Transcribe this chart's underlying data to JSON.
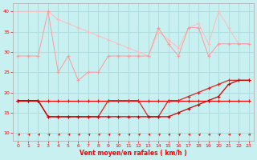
{
  "x": [
    0,
    1,
    2,
    3,
    4,
    5,
    6,
    7,
    8,
    9,
    10,
    11,
    12,
    13,
    14,
    15,
    16,
    17,
    18,
    19,
    20,
    21,
    22,
    23
  ],
  "line_top_rafales": [
    40,
    40,
    40,
    40,
    38,
    37,
    36,
    35,
    34,
    33,
    32,
    31,
    30,
    29,
    35,
    33,
    31,
    36,
    37,
    32,
    40,
    36,
    32,
    32
  ],
  "line_mid_pink": [
    29,
    29,
    29,
    40,
    25,
    29,
    23,
    25,
    25,
    29,
    29,
    29,
    29,
    29,
    36,
    32,
    29,
    36,
    36,
    29,
    32,
    32,
    32,
    32
  ],
  "line_flat_red": [
    18,
    18,
    18,
    18,
    18,
    18,
    18,
    18,
    18,
    18,
    18,
    18,
    18,
    18,
    18,
    18,
    18,
    18,
    18,
    18,
    18,
    18,
    18,
    18
  ],
  "line_diag_red": [
    18,
    18,
    18,
    14,
    14,
    14,
    14,
    14,
    14,
    18,
    18,
    18,
    18,
    14,
    14,
    18,
    18,
    19,
    20,
    21,
    22,
    23,
    23,
    23
  ],
  "line_low_red": [
    18,
    18,
    18,
    14,
    14,
    14,
    14,
    14,
    14,
    14,
    14,
    14,
    14,
    14,
    14,
    14,
    15,
    16,
    17,
    18,
    19,
    22,
    23,
    23
  ],
  "background_color": "#c8f0f0",
  "grid_color": "#b0dede",
  "line_top_color": "#ffbbbb",
  "line_mid_color": "#ff9999",
  "line_flat_color": "#ff0000",
  "line_diag_color": "#dd2222",
  "line_low_color": "#cc0000",
  "marker": "+",
  "ylim_min": 8,
  "ylim_max": 42,
  "xlim_min": -0.5,
  "xlim_max": 23.5,
  "xlabel": "Vent moyen/en rafales ( km/h )",
  "yticks": [
    10,
    15,
    20,
    25,
    30,
    35,
    40
  ],
  "xticks": [
    0,
    1,
    2,
    3,
    4,
    5,
    6,
    7,
    8,
    9,
    10,
    11,
    12,
    13,
    14,
    15,
    16,
    17,
    18,
    19,
    20,
    21,
    22,
    23
  ]
}
